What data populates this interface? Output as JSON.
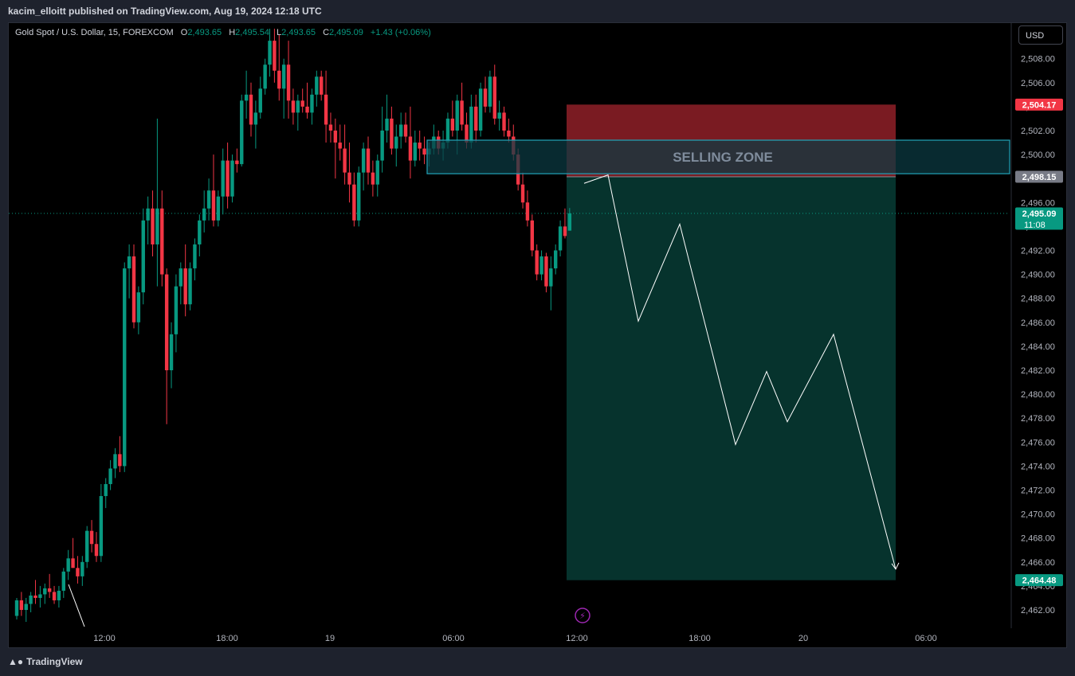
{
  "header": {
    "text": "kacim_elloitt published on TradingView.com, Aug 19, 2024 12:18 UTC"
  },
  "legend": {
    "symbol": "Gold Spot / U.S. Dollar, 15, FOREXCOM",
    "o_label": "O",
    "o_value": "2,493.65",
    "h_label": "H",
    "h_value": "2,495.54",
    "l_label": "L",
    "l_value": "2,493.65",
    "c_label": "C",
    "c_value": "2,495.09",
    "change": "+1.43 (+0.06%)"
  },
  "currency_button": "USD",
  "footer": {
    "logo_icon": "tradingview-logo-icon",
    "brand": "TradingView"
  },
  "colors": {
    "up": "#089981",
    "down": "#f23645",
    "background": "#000000",
    "selling_zone_fill": "#0b3a42",
    "selling_zone_border": "#22a3b8",
    "stop_fill": "#7a1b22",
    "target_fill": "#06332d",
    "price_line": "#089981",
    "projection_line": "#ffffff"
  },
  "chart_data": {
    "type": "candlestick",
    "symbol": "Gold Spot / U.S. Dollar",
    "interval": "15",
    "x_ticks": [
      "12:00",
      "18:00",
      "19",
      "06:00",
      "12:00",
      "18:00",
      "20",
      "06:00"
    ],
    "y_ticks": [
      2462,
      2464,
      2466,
      2468,
      2470,
      2472,
      2474,
      2476,
      2478,
      2480,
      2482,
      2484,
      2486,
      2488,
      2490,
      2492,
      2494,
      2496,
      2498,
      2500,
      2502,
      2504,
      2506,
      2508
    ],
    "y_range": [
      2461,
      2510.5
    ],
    "candles": [
      [
        2461.5,
        2463,
        2461.2,
        2462.8
      ],
      [
        2462.8,
        2463.5,
        2461.5,
        2462
      ],
      [
        2462,
        2463,
        2461,
        2462.5
      ],
      [
        2462.5,
        2463.5,
        2461.8,
        2463.2
      ],
      [
        2463.2,
        2464.5,
        2462.5,
        2463
      ],
      [
        2463,
        2464,
        2462.2,
        2463.3
      ],
      [
        2463.3,
        2464.2,
        2462.5,
        2463.8
      ],
      [
        2463.8,
        2465,
        2463,
        2463.5
      ],
      [
        2463.5,
        2464,
        2462.5,
        2462.8
      ],
      [
        2462.8,
        2464,
        2462.2,
        2463.6
      ],
      [
        2463.6,
        2465.5,
        2463,
        2465.2
      ],
      [
        2465.2,
        2467,
        2464.5,
        2466.3
      ],
      [
        2466.3,
        2468,
        2465.8,
        2465.5
      ],
      [
        2465.5,
        2466.5,
        2464.2,
        2464.8
      ],
      [
        2464.8,
        2466.5,
        2464,
        2466
      ],
      [
        2466,
        2469,
        2465.5,
        2468.6
      ],
      [
        2468.6,
        2469.5,
        2466.8,
        2467.5
      ],
      [
        2467.5,
        2468.5,
        2466,
        2466.5
      ],
      [
        2466.5,
        2472.5,
        2466,
        2471.5
      ],
      [
        2471.5,
        2473,
        2470.5,
        2472.5
      ],
      [
        2472.5,
        2474.5,
        2472,
        2473.8
      ],
      [
        2473.8,
        2475.5,
        2473,
        2475
      ],
      [
        2475,
        2476.5,
        2473.5,
        2474
      ],
      [
        2474,
        2491,
        2473.5,
        2490.5
      ],
      [
        2490.5,
        2492.5,
        2488,
        2491.5
      ],
      [
        2491.5,
        2492.5,
        2485.5,
        2486
      ],
      [
        2486,
        2489,
        2485,
        2488.5
      ],
      [
        2488.5,
        2495.5,
        2487.5,
        2494.5
      ],
      [
        2494.5,
        2496.5,
        2492.5,
        2495.5
      ],
      [
        2495.5,
        2497,
        2491.5,
        2492.5
      ],
      [
        2492.5,
        2503,
        2489,
        2495.5
      ],
      [
        2495.5,
        2497,
        2489,
        2490
      ],
      [
        2490,
        2490.5,
        2477.5,
        2482
      ],
      [
        2482,
        2486,
        2480.5,
        2485
      ],
      [
        2485,
        2490,
        2483.5,
        2489
      ],
      [
        2489,
        2491,
        2487.5,
        2490.5
      ],
      [
        2490.5,
        2492.5,
        2486.5,
        2487.5
      ],
      [
        2487.5,
        2491,
        2487,
        2490.5
      ],
      [
        2490.5,
        2493,
        2489.5,
        2492.5
      ],
      [
        2492.5,
        2495,
        2491.5,
        2494.5
      ],
      [
        2494.5,
        2497,
        2493.5,
        2495.5
      ],
      [
        2495.5,
        2498,
        2494.5,
        2497
      ],
      [
        2497,
        2500,
        2494,
        2494.5
      ],
      [
        2494.5,
        2497,
        2494,
        2496.5
      ],
      [
        2496.5,
        2500.5,
        2495,
        2499.5
      ],
      [
        2499.5,
        2501,
        2495.5,
        2496.5
      ],
      [
        2496.5,
        2500,
        2496,
        2499.5
      ],
      [
        2499.5,
        2500.5,
        2498.5,
        2499.2
      ],
      [
        2499.2,
        2505,
        2499,
        2504.5
      ],
      [
        2504.5,
        2507,
        2503,
        2505
      ],
      [
        2505,
        2506,
        2501.5,
        2502.5
      ],
      [
        2502.5,
        2504.5,
        2500.5,
        2503.5
      ],
      [
        2503.5,
        2506.5,
        2503,
        2505.5
      ],
      [
        2505.5,
        2508,
        2505,
        2507.5
      ],
      [
        2507.5,
        2510.5,
        2506.5,
        2509.5
      ],
      [
        2509.5,
        2510.5,
        2506,
        2507
      ],
      [
        2507,
        2510,
        2504.5,
        2505.5
      ],
      [
        2505.5,
        2508,
        2503,
        2507.5
      ],
      [
        2507.5,
        2509.5,
        2503,
        2504.5
      ],
      [
        2504.5,
        2505.5,
        2502.5,
        2503.5
      ],
      [
        2503.5,
        2505,
        2502,
        2504.5
      ],
      [
        2504.5,
        2505.5,
        2503.5,
        2504
      ],
      [
        2504,
        2506,
        2503,
        2503.5
      ],
      [
        2503.5,
        2505.5,
        2502.5,
        2505
      ],
      [
        2505,
        2507,
        2504,
        2506.5
      ],
      [
        2506.5,
        2507,
        2504.5,
        2505
      ],
      [
        2505,
        2507,
        2501,
        2502.5
      ],
      [
        2502.5,
        2503.5,
        2501,
        2502
      ],
      [
        2502,
        2503,
        2498,
        2501
      ],
      [
        2501,
        2502.5,
        2499.5,
        2500.5
      ],
      [
        2500.5,
        2502.5,
        2497.5,
        2498.5
      ],
      [
        2498.5,
        2501,
        2496,
        2497.5
      ],
      [
        2497.5,
        2498.5,
        2494,
        2494.5
      ],
      [
        2494.5,
        2499,
        2494,
        2498.5
      ],
      [
        2498.5,
        2501,
        2497,
        2500.5
      ],
      [
        2500.5,
        2501.5,
        2497.5,
        2498.5
      ],
      [
        2498.5,
        2499.5,
        2496.5,
        2497.5
      ],
      [
        2497.5,
        2500,
        2496.5,
        2499.5
      ],
      [
        2499.5,
        2504,
        2498.5,
        2502
      ],
      [
        2502,
        2505,
        2501,
        2503
      ],
      [
        2503,
        2504,
        2500,
        2500.5
      ],
      [
        2500.5,
        2502.5,
        2499,
        2501.5
      ],
      [
        2501.5,
        2503.5,
        2500.5,
        2502.5
      ],
      [
        2502.5,
        2503.5,
        2501,
        2501.5
      ],
      [
        2501.5,
        2504,
        2498,
        2499.5
      ],
      [
        2499.5,
        2502,
        2499,
        2501
      ],
      [
        2501,
        2502,
        2499.5,
        2500.5
      ],
      [
        2500.5,
        2501.5,
        2499.2,
        2500
      ],
      [
        2500,
        2501,
        2499,
        2500.5
      ],
      [
        2500.5,
        2502.5,
        2500,
        2501.5
      ],
      [
        2501.5,
        2502,
        2500,
        2500.5
      ],
      [
        2500.5,
        2502,
        2499.5,
        2501
      ],
      [
        2501,
        2503.5,
        2500.5,
        2503
      ],
      [
        2503,
        2504.5,
        2501.5,
        2502
      ],
      [
        2502,
        2505,
        2500,
        2504.5
      ],
      [
        2504.5,
        2506,
        2502,
        2502.5
      ],
      [
        2502.5,
        2503.5,
        2500.5,
        2501
      ],
      [
        2501,
        2505,
        2500.5,
        2504
      ],
      [
        2504,
        2505,
        2501,
        2502
      ],
      [
        2502,
        2506,
        2501.5,
        2505.5
      ],
      [
        2505.5,
        2506.5,
        2503.5,
        2504
      ],
      [
        2504,
        2507,
        2503.5,
        2506.5
      ],
      [
        2506.5,
        2507.5,
        2502.5,
        2503
      ],
      [
        2503,
        2504.5,
        2502,
        2503.5
      ],
      [
        2503.5,
        2504,
        2501.5,
        2502
      ],
      [
        2502,
        2503,
        2501,
        2501.5
      ],
      [
        2501.5,
        2502.5,
        2499.5,
        2500
      ],
      [
        2500,
        2500.5,
        2497,
        2497.5
      ],
      [
        2497.5,
        2498.5,
        2495.5,
        2496
      ],
      [
        2496,
        2497,
        2494,
        2494.5
      ],
      [
        2494.5,
        2495,
        2491.5,
        2492
      ],
      [
        2492,
        2492.5,
        2489.5,
        2490
      ],
      [
        2490,
        2492,
        2489.5,
        2491.5
      ],
      [
        2491.5,
        2491.8,
        2488.5,
        2489
      ],
      [
        2489,
        2491.5,
        2487,
        2490.5
      ],
      [
        2490.5,
        2492.5,
        2490,
        2492
      ],
      [
        2492,
        2494.5,
        2491.5,
        2494
      ],
      [
        2494,
        2495.5,
        2493,
        2493.2
      ],
      [
        2493.65,
        2495.54,
        2493.65,
        2495.09
      ]
    ],
    "last_price": 2495.09,
    "price_labels": {
      "stop": "2,504.17",
      "entry": "2,498.15",
      "last": "2,495.09",
      "countdown": "11:08",
      "target": "2,464.48"
    },
    "selling_zone": {
      "label": "SELLING ZONE",
      "top": 2501.2,
      "bottom": 2498.4
    },
    "position": {
      "type": "short",
      "entry": 2498.15,
      "stop": 2504.17,
      "target": 2464.48
    },
    "projection_path": [
      2497.6,
      2498.3,
      2486.1,
      2494.2,
      2475.8,
      2481.9,
      2477.7,
      2485.0,
      2465.4
    ]
  }
}
